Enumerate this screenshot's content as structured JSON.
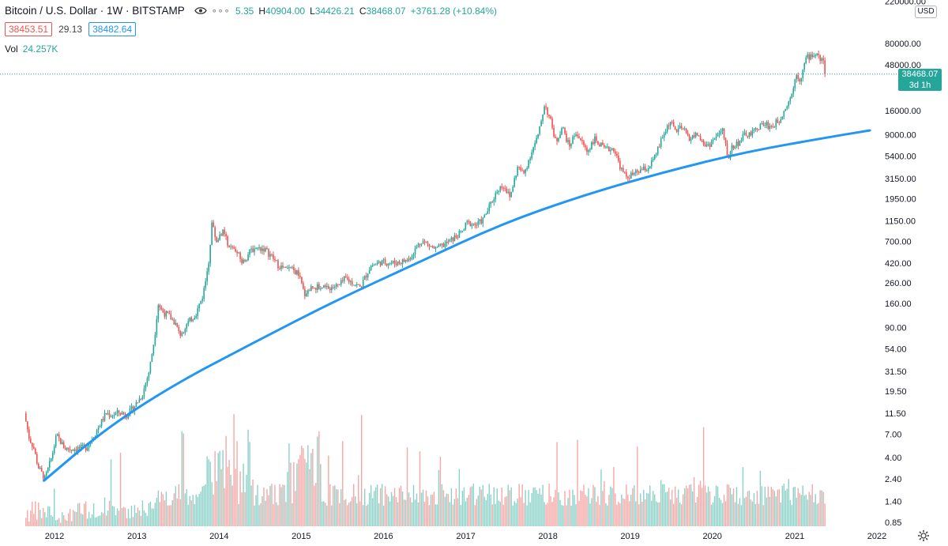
{
  "header": {
    "symbol_title": "Bitcoin / U.S. Dollar · 1W · BITSTAMP",
    "ohlc": {
      "open_partial": "5.35",
      "high_label": "H",
      "high": "40904.00",
      "low_label": "L",
      "low": "34426.21",
      "close_label": "C",
      "close": "38468.07",
      "change": "+3761.28 (+10.84%)"
    },
    "bid": "38453.51",
    "spread": "29.13",
    "ask": "38482.64",
    "volume_label": "Vol",
    "volume": "24.257K",
    "currency": "USD",
    "eye_icon": "eye-icon",
    "more_icon": "more-dots-icon"
  },
  "price_tag": {
    "price": "38468.07",
    "countdown": "3d 1h"
  },
  "settings_icon": "gear-icon",
  "colors": {
    "up": "#26a69a",
    "down": "#ef5350",
    "trend": "#2196f3",
    "up_volume": "#8ad1c8",
    "down_volume": "#f5a8a6"
  },
  "chart_data": {
    "type": "candlestick",
    "y_scale": "log",
    "y_ticks": [
      "220000.00",
      "80000.00",
      "48000.00",
      "16000.00",
      "9000.00",
      "5400.00",
      "3150.00",
      "1950.00",
      "1150.00",
      "700.00",
      "420.00",
      "260.00",
      "160.00",
      "90.00",
      "54.00",
      "31.50",
      "19.50",
      "11.50",
      "7.00",
      "4.00",
      "2.40",
      "1.40",
      "0.85"
    ],
    "x_ticks": [
      "2012",
      "2013",
      "2014",
      "2015",
      "2016",
      "2017",
      "2018",
      "2019",
      "2020",
      "2021",
      "2022"
    ],
    "current_price": 38468.07,
    "weekly_close_path": [
      [
        "2011-08-20",
        11.5
      ],
      [
        "2011-09-10",
        6.5
      ],
      [
        "2011-10-01",
        5.0
      ],
      [
        "2011-10-20",
        3.2
      ],
      [
        "2011-11-20",
        2.4
      ],
      [
        "2011-12-20",
        4.1
      ],
      [
        "2012-01-10",
        6.8
      ],
      [
        "2012-02-15",
        5.0
      ],
      [
        "2012-03-15",
        4.9
      ],
      [
        "2012-04-15",
        5.0
      ],
      [
        "2012-05-20",
        5.1
      ],
      [
        "2012-06-20",
        6.5
      ],
      [
        "2012-07-20",
        8.8
      ],
      [
        "2012-08-17",
        11.5
      ],
      [
        "2012-09-10",
        11.0
      ],
      [
        "2012-10-15",
        11.8
      ],
      [
        "2012-11-15",
        11.0
      ],
      [
        "2012-12-20",
        13.5
      ],
      [
        "2013-01-25",
        18.0
      ],
      [
        "2013-02-25",
        32.0
      ],
      [
        "2013-03-20",
        70.0
      ],
      [
        "2013-04-05",
        160.0
      ],
      [
        "2013-04-25",
        130.0
      ],
      [
        "2013-05-20",
        120.0
      ],
      [
        "2013-06-20",
        100.0
      ],
      [
        "2013-07-10",
        75.0
      ],
      [
        "2013-08-15",
        100.0
      ],
      [
        "2013-09-20",
        125.0
      ],
      [
        "2013-10-20",
        190.0
      ],
      [
        "2013-11-15",
        400.0
      ],
      [
        "2013-11-30",
        1100.0
      ],
      [
        "2013-12-20",
        700.0
      ],
      [
        "2014-01-15",
        900.0
      ],
      [
        "2014-02-20",
        600.0
      ],
      [
        "2014-03-20",
        550.0
      ],
      [
        "2014-04-15",
        420.0
      ],
      [
        "2014-05-25",
        580.0
      ],
      [
        "2014-06-20",
        600.0
      ],
      [
        "2014-07-20",
        590.0
      ],
      [
        "2014-08-20",
        500.0
      ],
      [
        "2014-09-20",
        400.0
      ],
      [
        "2014-10-20",
        360.0
      ],
      [
        "2014-11-20",
        360.0
      ],
      [
        "2014-12-20",
        320.0
      ],
      [
        "2015-01-15",
        200.0
      ],
      [
        "2015-02-20",
        240.0
      ],
      [
        "2015-04-20",
        230.0
      ],
      [
        "2015-06-20",
        245.0
      ],
      [
        "2015-07-15",
        290.0
      ],
      [
        "2015-09-20",
        235.0
      ],
      [
        "2015-11-05",
        390.0
      ],
      [
        "2015-12-20",
        430.0
      ],
      [
        "2016-02-20",
        420.0
      ],
      [
        "2016-04-20",
        450.0
      ],
      [
        "2016-06-17",
        720.0
      ],
      [
        "2016-08-20",
        580.0
      ],
      [
        "2016-10-20",
        700.0
      ],
      [
        "2016-12-20",
        900.0
      ],
      [
        "2017-01-05",
        1100.0
      ],
      [
        "2017-02-20",
        1050.0
      ],
      [
        "2017-03-20",
        1200.0
      ],
      [
        "2017-05-25",
        2500.0
      ],
      [
        "2017-06-20",
        2700.0
      ],
      [
        "2017-07-15",
        2000.0
      ],
      [
        "2017-08-20",
        4200.0
      ],
      [
        "2017-09-15",
        3500.0
      ],
      [
        "2017-10-20",
        6000.0
      ],
      [
        "2017-11-20",
        9000.0
      ],
      [
        "2017-12-17",
        19000.0
      ],
      [
        "2018-01-15",
        12000.0
      ],
      [
        "2018-02-05",
        7500.0
      ],
      [
        "2018-03-05",
        11000.0
      ],
      [
        "2018-04-05",
        6800.0
      ],
      [
        "2018-05-05",
        9600.0
      ],
      [
        "2018-06-25",
        6000.0
      ],
      [
        "2018-07-25",
        8200.0
      ],
      [
        "2018-09-10",
        6300.0
      ],
      [
        "2018-10-20",
        6500.0
      ],
      [
        "2018-11-25",
        3800.0
      ],
      [
        "2018-12-15",
        3300.0
      ],
      [
        "2019-01-20",
        3500.0
      ],
      [
        "2019-02-20",
        3900.0
      ],
      [
        "2019-03-20",
        4000.0
      ],
      [
        "2019-04-20",
        5200.0
      ],
      [
        "2019-05-25",
        8500.0
      ],
      [
        "2019-06-26",
        12500.0
      ],
      [
        "2019-07-20",
        10000.0
      ],
      [
        "2019-08-20",
        10500.0
      ],
      [
        "2019-09-25",
        8200.0
      ],
      [
        "2019-10-26",
        9200.0
      ],
      [
        "2019-11-25",
        7000.0
      ],
      [
        "2019-12-20",
        7200.0
      ],
      [
        "2020-01-20",
        8700.0
      ],
      [
        "2020-02-15",
        10000.0
      ],
      [
        "2020-03-12",
        5000.0
      ],
      [
        "2020-03-25",
        6600.0
      ],
      [
        "2020-04-25",
        7500.0
      ],
      [
        "2020-05-25",
        9000.0
      ],
      [
        "2020-06-25",
        9200.0
      ],
      [
        "2020-07-25",
        11000.0
      ],
      [
        "2020-08-20",
        11800.0
      ],
      [
        "2020-09-20",
        10800.0
      ],
      [
        "2020-10-25",
        13000.0
      ],
      [
        "2020-11-25",
        18000.0
      ],
      [
        "2020-12-20",
        24000.0
      ],
      [
        "2021-01-08",
        40000.0
      ],
      [
        "2021-01-25",
        33000.0
      ],
      [
        "2021-02-20",
        56000.0
      ],
      [
        "2021-03-13",
        60000.0
      ],
      [
        "2021-04-14",
        63000.0
      ],
      [
        "2021-04-25",
        50000.0
      ],
      [
        "2021-05-09",
        58000.0
      ],
      [
        "2021-05-20",
        38468.0
      ]
    ],
    "trend_line": [
      [
        "2011-11-15",
        2.3
      ],
      [
        "2012-08-01",
        7.5
      ],
      [
        "2013-06-01",
        22.0
      ],
      [
        "2014-06-01",
        62.0
      ],
      [
        "2015-06-01",
        170.0
      ],
      [
        "2016-06-01",
        420.0
      ],
      [
        "2017-06-01",
        1050.0
      ],
      [
        "2018-06-01",
        2100.0
      ],
      [
        "2019-06-01",
        3700.0
      ],
      [
        "2020-06-01",
        6000.0
      ],
      [
        "2021-06-01",
        8500.0
      ],
      [
        "2021-12-01",
        10000.0
      ]
    ]
  }
}
